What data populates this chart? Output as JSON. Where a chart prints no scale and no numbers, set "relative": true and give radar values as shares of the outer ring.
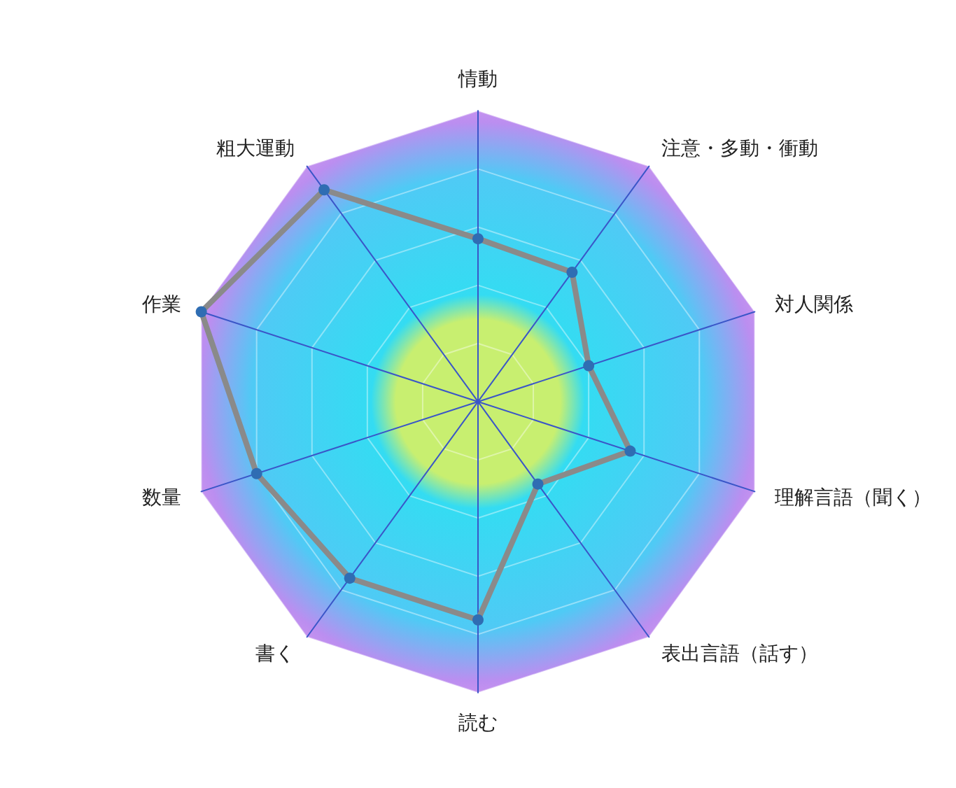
{
  "chart_data": {
    "type": "radar",
    "relative": true,
    "categories": [
      "情動",
      "注意・多動・衝動",
      "対人関係",
      "理解言語（聞く）",
      "表出言語（話す）",
      "読む",
      "書く",
      "数量",
      "作業",
      "粗大運動"
    ],
    "series": [
      {
        "color": "#8a8a8a",
        "values": [
          0.56,
          0.55,
          0.4,
          0.55,
          0.35,
          0.75,
          0.75,
          0.8,
          1.0,
          0.9
        ]
      }
    ],
    "marker": "circle",
    "line_style": "solid"
  }
}
